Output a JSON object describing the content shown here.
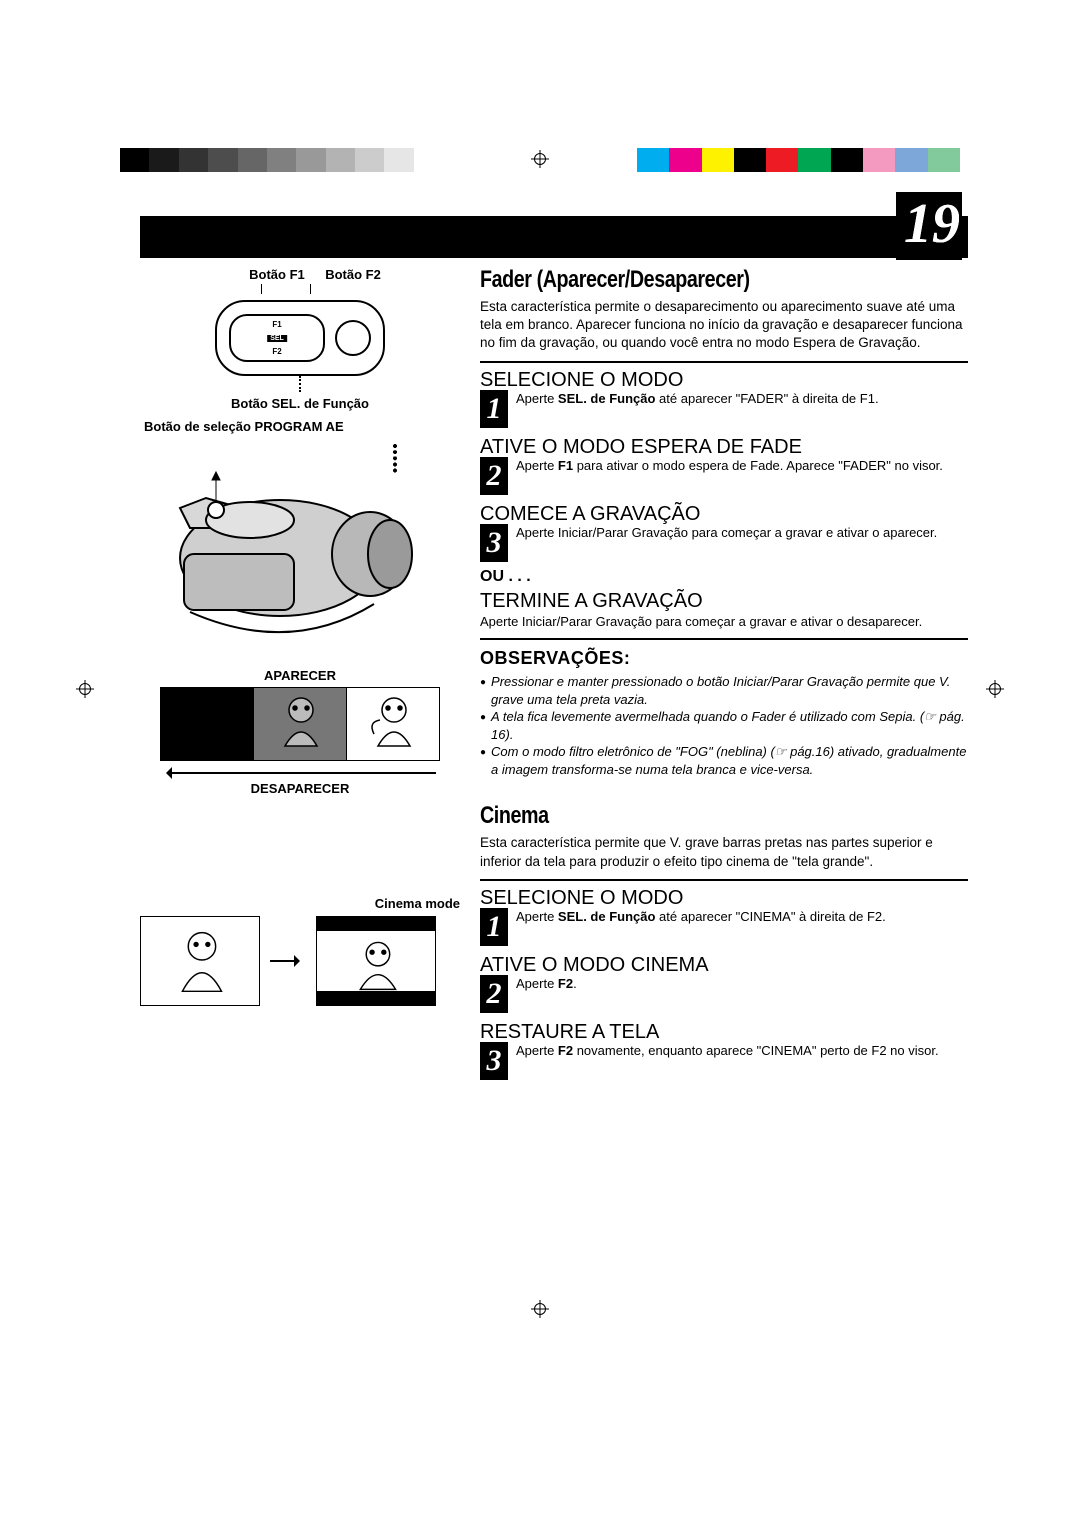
{
  "page_number": "19",
  "colorbar": {
    "grays": [
      "#000000",
      "#1a1a1a",
      "#333333",
      "#4d4d4d",
      "#666666",
      "#808080",
      "#999999",
      "#b3b3b3",
      "#cccccc",
      "#e6e6e6",
      "#ffffff"
    ],
    "colors": [
      "#00aeef",
      "#ec008c",
      "#fff200",
      "#000000",
      "#ed1c24",
      "#00a651",
      "#000000",
      "#f49ac1",
      "#7da7d9",
      "#82ca9c"
    ]
  },
  "left": {
    "btn_f1": "Botão F1",
    "btn_f2": "Botão F2",
    "controlbox": {
      "f1": "F1",
      "sel": "SEL",
      "f2": "F2"
    },
    "sel_label": "Botão SEL. de Função",
    "program_ae": "Botão de seleção PROGRAM AE",
    "aparecer": "APARECER",
    "desaparecer": "DESAPARECER",
    "cinema_mode": "Cinema mode"
  },
  "fader": {
    "title": "Fader (Aparecer/Desaparecer)",
    "intro": "Esta característica permite o desaparecimento ou aparecimento suave até uma tela em branco. Aparecer funciona no início da gravação e desaparecer funciona no fim da gravação, ou quando você entra no modo Espera de Gravação.",
    "steps": [
      {
        "n": "1",
        "h": "SELECIONE O MODO",
        "d_pre": "Aperte ",
        "d_bold": "SEL. de Função",
        "d_post": " até aparecer \"FADER\" à direita de F1."
      },
      {
        "n": "2",
        "h": "ATIVE O MODO ESPERA DE FADE",
        "d_pre": "Aperte ",
        "d_bold": "F1",
        "d_post": " para ativar o modo espera de Fade. Aparece \"FADER\" no visor."
      },
      {
        "n": "3",
        "h": "COMECE A GRAVAÇÃO",
        "d": "Aperte Iniciar/Parar Gravação para começar a gravar e ativar o aparecer."
      }
    ],
    "ou": "OU . . .",
    "termine_h": "TERMINE A GRAVAÇÃO",
    "termine_d": "Aperte Iniciar/Parar Gravação para começar a gravar e ativar o desaparecer.",
    "obs_h": "OBSERVAÇÕES:",
    "obs": [
      "Pressionar e manter pressionado o botão Iniciar/Parar Gravação permite que V. grave uma tela preta vazia.",
      "A tela fica levemente avermelhada quando o Fader é utilizado com Sepia. (☞ pág. 16).",
      "Com o modo filtro eletrônico de \"FOG\" (neblina) (☞ pág.16) ativado, gradualmente a imagem transforma-se numa tela branca e vice-versa."
    ]
  },
  "cinema": {
    "title": "Cinema",
    "intro": "Esta característica permite que V. grave barras pretas nas partes superior e inferior da tela para produzir o efeito tipo cinema de \"tela grande\".",
    "steps": [
      {
        "n": "1",
        "h": "SELECIONE O MODO",
        "d_pre": "Aperte ",
        "d_bold": "SEL. de Função",
        "d_post": " até aparecer \"CINEMA\" à direita de F2."
      },
      {
        "n": "2",
        "h": "ATIVE O MODO CINEMA",
        "d_pre": "Aperte ",
        "d_bold": "F2",
        "d_post": "."
      },
      {
        "n": "3",
        "h": "RESTAURE A TELA",
        "d_pre": "Aperte ",
        "d_bold": "F2",
        "d_post": " novamente, enquanto aparece \"CINEMA\" perto de F2 no visor."
      }
    ]
  }
}
